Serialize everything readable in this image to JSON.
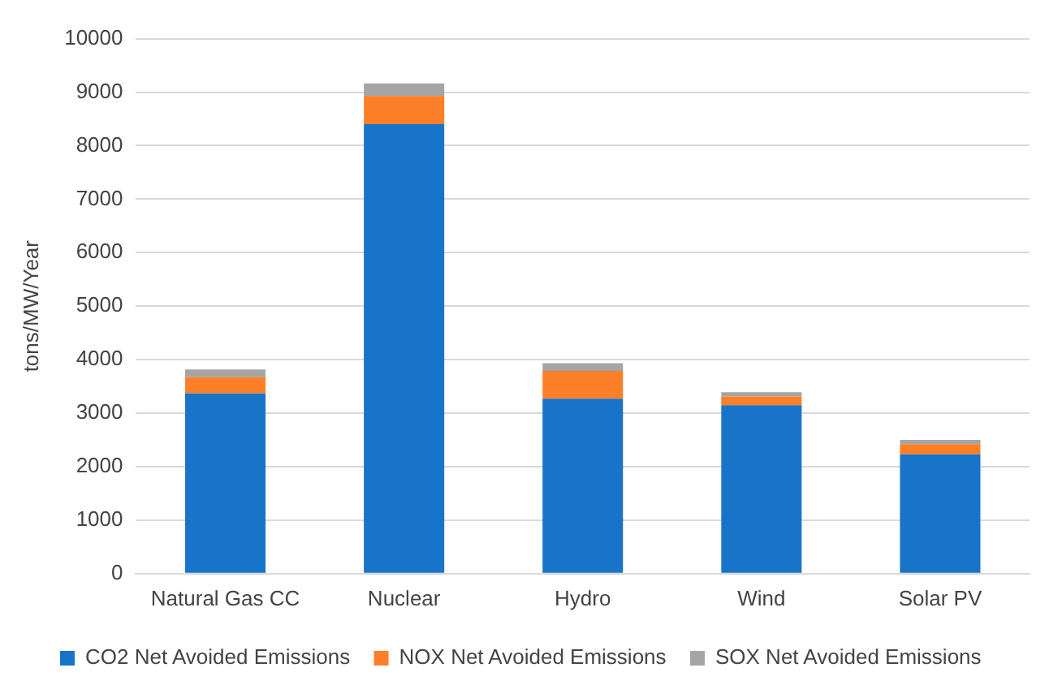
{
  "chart_data": {
    "type": "bar",
    "stacked": true,
    "ylabel": "tons/MW/Year",
    "categories": [
      "Natural Gas CC",
      "Nuclear",
      "Hydro",
      "Wind",
      "Solar PV"
    ],
    "series": [
      {
        "name": "CO2 Net Avoided Emissions",
        "color": "#1874c9",
        "values": [
          3370,
          8400,
          3270,
          3150,
          2230
        ]
      },
      {
        "name": "NOX Net Avoided Emissions",
        "color": "#fd7f27",
        "values": [
          300,
          530,
          520,
          160,
          190
        ]
      },
      {
        "name": "SOX Net Avoided Emissions",
        "color": "#a5a5a5",
        "values": [
          145,
          235,
          145,
          80,
          80
        ]
      }
    ],
    "ylim": [
      0,
      10000
    ],
    "yticks": [
      0,
      1000,
      2000,
      3000,
      4000,
      5000,
      6000,
      7000,
      8000,
      9000,
      10000
    ],
    "grid": "y",
    "legend": "bottom"
  }
}
